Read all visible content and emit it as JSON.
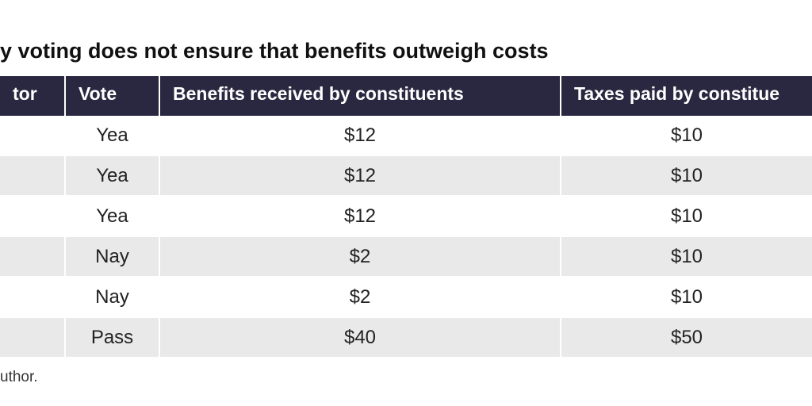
{
  "title": "y voting does not ensure that benefits outweigh costs",
  "colors": {
    "header_bg": "#2a2740",
    "header_text": "#ffffff",
    "row_odd": "#ffffff",
    "row_even": "#e9e9e9",
    "divider": "#ffffff"
  },
  "chart_data": {
    "type": "table",
    "title": "y voting does not ensure that benefits outweigh costs",
    "columns": [
      "tor",
      "Vote",
      "Benefits received by constituents",
      "Taxes paid by constitue"
    ],
    "rows": [
      [
        "",
        "Yea",
        "$12",
        "$10"
      ],
      [
        "",
        "Yea",
        "$12",
        "$10"
      ],
      [
        "",
        "Yea",
        "$12",
        "$10"
      ],
      [
        "",
        "Nay",
        "$2",
        "$10"
      ],
      [
        "",
        "Nay",
        "$2",
        "$10"
      ],
      [
        "",
        "Pass",
        "$40",
        "$50"
      ]
    ]
  },
  "footnote": "uthor."
}
